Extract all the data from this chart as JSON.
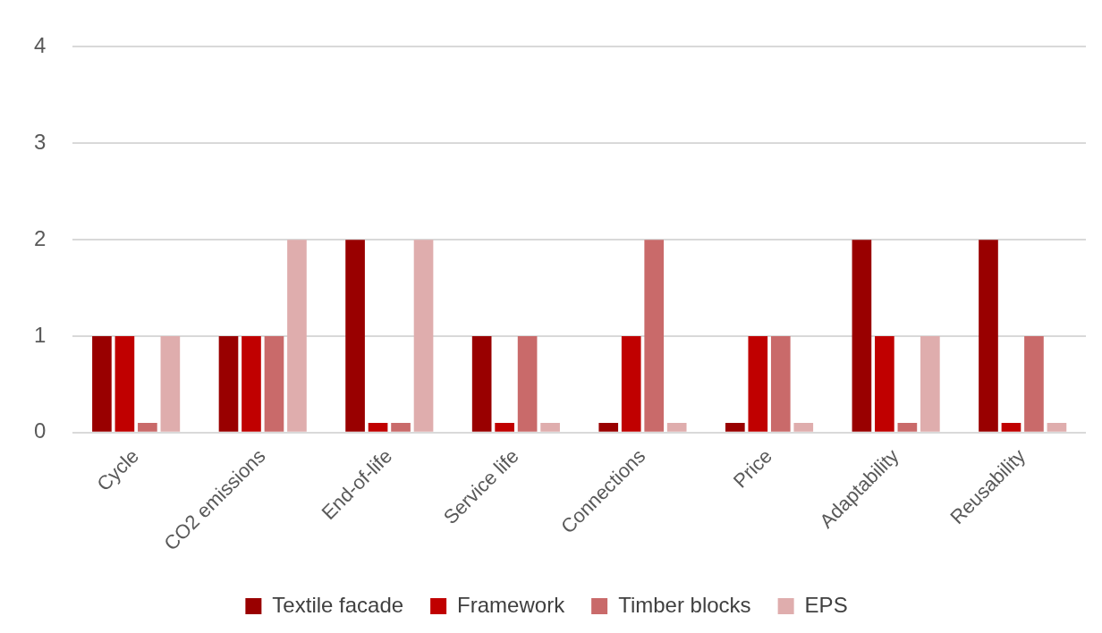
{
  "chart_data": {
    "type": "bar",
    "categories": [
      "Cycle",
      "CO2 emissions",
      "End-of-life",
      "Service life",
      "Connections",
      "Price",
      "Adaptability",
      "Reusability"
    ],
    "series": [
      {
        "name": "Textile facade",
        "color": "#990000",
        "values": [
          1,
          1,
          2,
          1,
          0.1,
          0.1,
          2,
          2
        ]
      },
      {
        "name": "Framework",
        "color": "#c00000",
        "values": [
          1,
          1,
          0.1,
          0.1,
          1,
          1,
          1,
          0.1
        ]
      },
      {
        "name": "Timber blocks",
        "color": "#c96a6a",
        "values": [
          0.1,
          1,
          0.1,
          1,
          2,
          1,
          0.1,
          1
        ]
      },
      {
        "name": "EPS",
        "color": "#dfadad",
        "values": [
          1,
          2,
          2,
          0.1,
          0.1,
          0.1,
          1,
          0.1
        ]
      }
    ],
    "ylim": [
      0,
      4
    ],
    "yticks": [
      0,
      1,
      2,
      3,
      4
    ],
    "grid": "y",
    "legend": "bottom"
  }
}
